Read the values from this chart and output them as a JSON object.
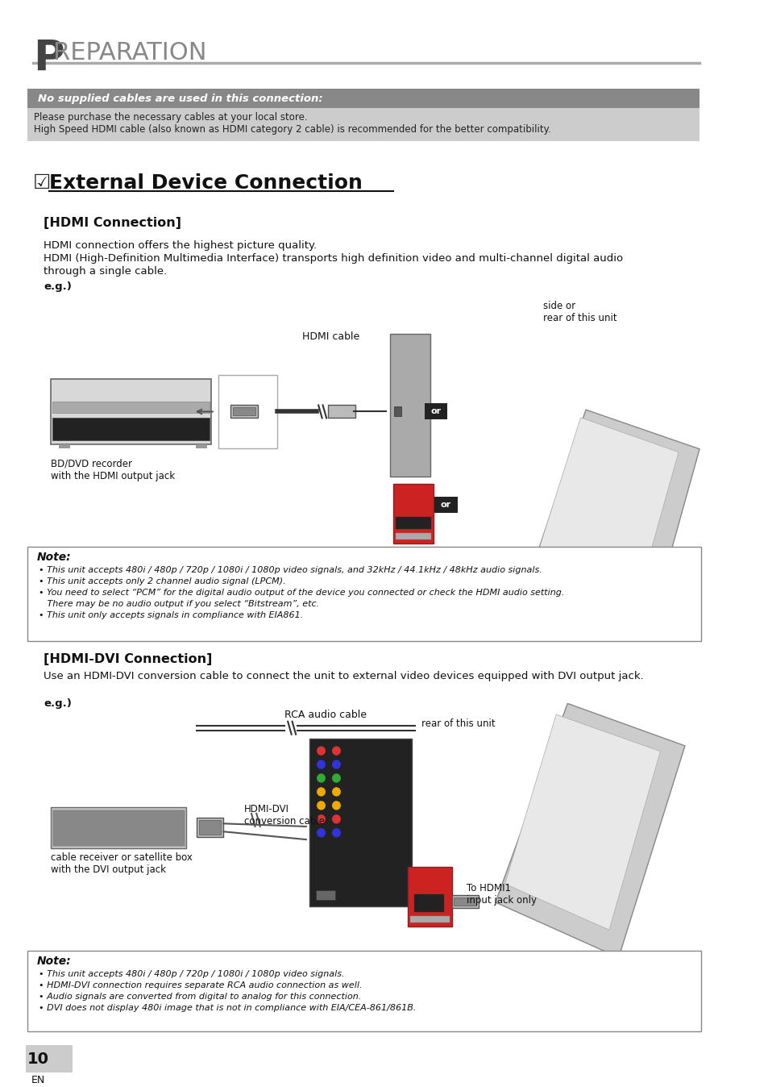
{
  "bg_color": "#ffffff",
  "title_letter_P": "P",
  "title_text": "REPARATION",
  "notice_title": "No supplied cables are used in this connection:",
  "notice_line1": "Please purchase the necessary cables at your local store.",
  "notice_line2": "High Speed HDMI cable (also known as HDMI category 2 cable) is recommended for the better compatibility.",
  "section_checkbox": "☑",
  "section_title": "External Device Connection",
  "hdmi_conn_title": "[HDMI Connection]",
  "hdmi_conn_body1": "HDMI connection offers the highest picture quality.",
  "hdmi_conn_body2": "HDMI (High-Definition Multimedia Interface) transports high definition video and multi-channel digital audio",
  "hdmi_conn_body3": "through a single cable.",
  "eg_label": "e.g.)",
  "side_rear_label": "side or\nrear of this unit",
  "hdmi_cable_label": "HDMI cable",
  "bd_dvd_label": "BD/DVD recorder\nwith the HDMI output jack",
  "or_label": "or",
  "note1_title": "Note:",
  "note1_bullets": [
    "• This unit accepts 480i / 480p / 720p / 1080i / 1080p video signals, and 32kHz / 44.1kHz / 48kHz audio signals.",
    "• This unit accepts only 2 channel audio signal (LPCM).",
    "• You need to select “PCM” for the digital audio output of the device you connected or check the HDMI audio setting.",
    "   There may be no audio output if you select “Bitstream”, etc.",
    "• This unit only accepts signals in compliance with EIA861."
  ],
  "hdmi_dvi_title": "[HDMI-DVI Connection]",
  "hdmi_dvi_body": "Use an HDMI-DVI conversion cable to connect the unit to external video devices equipped with DVI output jack.",
  "eg2_label": "e.g.)",
  "rca_cable_label": "RCA audio cable",
  "rear_unit_label": "rear of this unit",
  "hdmi_dvi_cable_label": "HDMI-DVI\nconversion cable",
  "cable_receiver_label": "cable receiver or satellite box\nwith the DVI output jack",
  "to_hdmi_label": "To HDMI1\ninput jack only",
  "note2_title": "Note:",
  "note2_bullets": [
    "• This unit accepts 480i / 480p / 720p / 1080i / 1080p video signals.",
    "• HDMI-DVI connection requires separate RCA audio connection as well.",
    "• Audio signals are converted from digital to analog for this connection.",
    "• DVI does not display 480i image that is not in compliance with EIA/CEA-861/861B."
  ],
  "page_num": "10",
  "page_en": "EN"
}
